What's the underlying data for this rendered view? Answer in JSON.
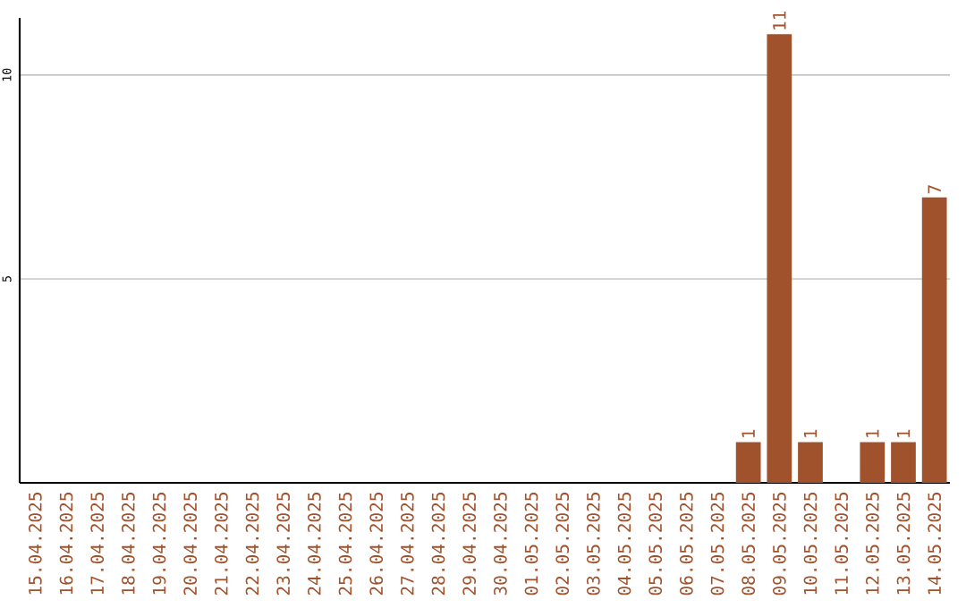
{
  "chart_data": {
    "type": "bar",
    "categories": [
      "15.04.2025",
      "16.04.2025",
      "17.04.2025",
      "18.04.2025",
      "19.04.2025",
      "20.04.2025",
      "21.04.2025",
      "22.04.2025",
      "23.04.2025",
      "24.04.2025",
      "25.04.2025",
      "26.04.2025",
      "27.04.2025",
      "28.04.2025",
      "29.04.2025",
      "30.04.2025",
      "01.05.2025",
      "02.05.2025",
      "03.05.2025",
      "04.05.2025",
      "05.05.2025",
      "06.05.2025",
      "07.05.2025",
      "08.05.2025",
      "09.05.2025",
      "10.05.2025",
      "11.05.2025",
      "12.05.2025",
      "13.05.2025",
      "14.05.2025"
    ],
    "values": [
      0,
      0,
      0,
      0,
      0,
      0,
      0,
      0,
      0,
      0,
      0,
      0,
      0,
      0,
      0,
      0,
      0,
      0,
      0,
      0,
      0,
      0,
      0,
      1,
      11,
      1,
      0,
      1,
      1,
      7
    ],
    "value_labels": [
      null,
      null,
      null,
      null,
      null,
      null,
      null,
      null,
      null,
      null,
      null,
      null,
      null,
      null,
      null,
      null,
      null,
      null,
      null,
      null,
      null,
      null,
      null,
      "1",
      "11",
      "1",
      null,
      "1",
      "1",
      "7"
    ],
    "color": "#a0522d",
    "ylim": [
      0,
      11.4
    ],
    "yticks": [
      5,
      10
    ],
    "grid": "y"
  }
}
